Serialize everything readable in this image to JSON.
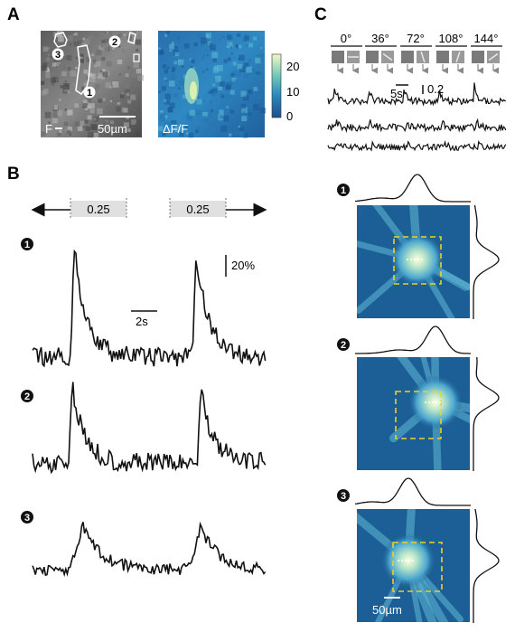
{
  "panels": {
    "A": {
      "letter": "A",
      "left_label": "F",
      "scalebar_label": "50µm",
      "right_label": "ΔF/F",
      "cell_markers": [
        "1",
        "2",
        "3"
      ],
      "colorbar_ticks": [
        "20",
        "10",
        "0"
      ]
    },
    "B": {
      "letter": "B",
      "stim_labels": [
        "0.25",
        "0.25"
      ],
      "scale_y_label": "20%",
      "scale_x_label": "2s",
      "trace_markers": [
        "1",
        "2",
        "3"
      ]
    },
    "C": {
      "letter": "C",
      "orientations": [
        "0°",
        "36°",
        "72°",
        "108°",
        "144°"
      ],
      "scale_time_label": "5s",
      "scale_amp_label": "0.2"
    },
    "D": {
      "rf_markers": [
        "1",
        "2",
        "3"
      ],
      "scalebar_label": "50µm"
    }
  },
  "colors": {
    "trace": "#111111",
    "rf_dark": "#1c5f96",
    "rf_box": "#f0d020"
  }
}
